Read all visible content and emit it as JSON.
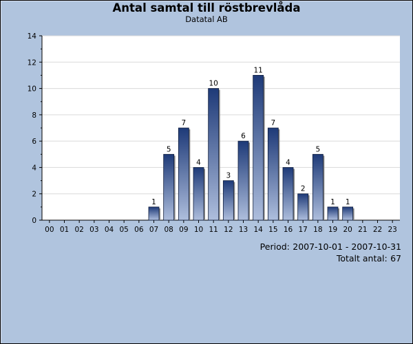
{
  "chart_data": {
    "type": "bar",
    "title": "Antal samtal till röstbrevlåda",
    "subtitle": "Datatal AB",
    "categories": [
      "00",
      "01",
      "02",
      "03",
      "04",
      "05",
      "06",
      "07",
      "08",
      "09",
      "10",
      "11",
      "12",
      "13",
      "14",
      "15",
      "16",
      "17",
      "18",
      "19",
      "20",
      "21",
      "22",
      "23"
    ],
    "values": [
      0,
      0,
      0,
      0,
      0,
      0,
      0,
      1,
      5,
      7,
      4,
      10,
      3,
      6,
      11,
      7,
      4,
      2,
      5,
      1,
      1,
      0,
      0,
      0
    ],
    "data_labels": [
      "",
      "",
      "",
      "",
      "",
      "",
      "",
      "1",
      "5",
      "7",
      "4",
      "10",
      "3",
      "6",
      "11",
      "7",
      "4",
      "2",
      "5",
      "1",
      "1",
      "",
      "",
      ""
    ],
    "ylim": [
      0,
      14
    ],
    "yticks": [
      0,
      2,
      4,
      6,
      8,
      10,
      12,
      14
    ],
    "xlabel": "",
    "ylabel": "",
    "grid": true,
    "legend": "none"
  },
  "info": {
    "period_label": "Period:",
    "period_value": "2007-10-01 - 2007-10-31",
    "total_label": "Totalt antal:",
    "total_value": "67"
  },
  "colors": {
    "background": "#b0c4de",
    "plot_area": "#ffffff",
    "bar_top": "#1e3a78",
    "bar_bottom": "#aebedd",
    "gridline": "#d9d9d9"
  }
}
